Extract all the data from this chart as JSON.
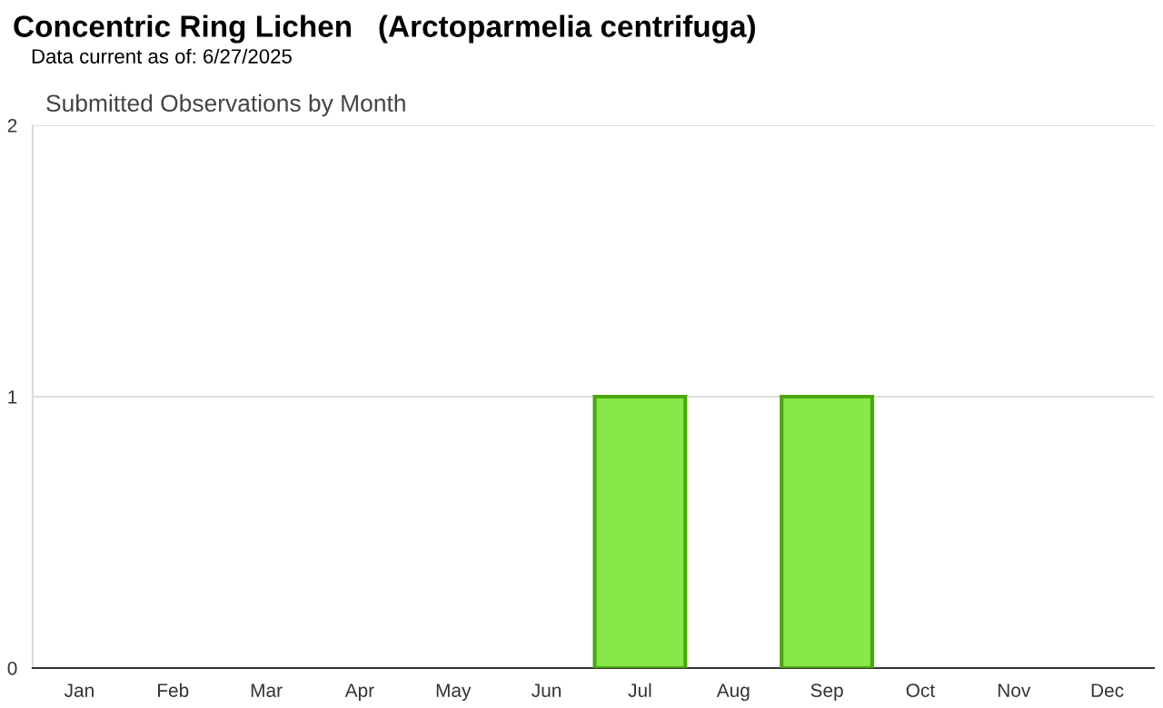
{
  "chart_data": {
    "type": "bar",
    "title": "Concentric Ring Lichen   (Arctoparmelia centrifuga)",
    "subtitle": "Data current as of: 6/27/2025",
    "annotations": [
      "Submitted Observations by Month"
    ],
    "categories": [
      "Jan",
      "Feb",
      "Mar",
      "Apr",
      "May",
      "Jun",
      "Jul",
      "Aug",
      "Sep",
      "Oct",
      "Nov",
      "Dec"
    ],
    "values": [
      0,
      0,
      0,
      0,
      0,
      0,
      1,
      0,
      1,
      0,
      0,
      0
    ],
    "color": "#88e84a",
    "ylim": [
      0,
      2
    ],
    "yticks": [
      0,
      1,
      2
    ],
    "grid": "y",
    "legend": false
  }
}
